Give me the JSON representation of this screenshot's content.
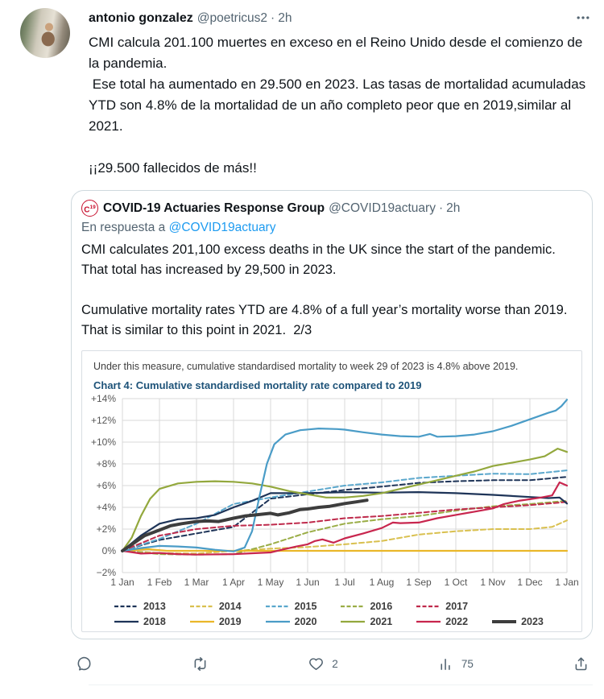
{
  "tweet": {
    "author": "antonio gonzalez",
    "handle": "@poetricus2",
    "separator": "·",
    "time": "2h",
    "text": "CMI calcula 201.100 muertes en exceso en el Reino Unido desde el comienzo de la pandemia.\n Ese total ha aumentado en 29.500 en 2023. Las tasas de mortalidad acumuladas YTD son 4.8% de la mortalidad de un año completo peor que en 2019,similar al 2021.\n\n¡¡29.500 fallecidos de más!!"
  },
  "quote": {
    "logo_main": "C",
    "logo_sup": "19",
    "author": "COVID-19 Actuaries Response Group",
    "handle": "@COVID19actuary",
    "separator": "·",
    "time": "2h",
    "reply_prefix": "En respuesta a",
    "reply_handle": "@COVID19actuary",
    "text": "CMI calculates 201,100 excess deaths in the UK since the start of the pandemic. That total has increased by 29,500 in 2023.\n\nCumulative mortality rates YTD are 4.8% of a full year’s mortality worse than 2019. That is similar to this point in 2021.  2/3"
  },
  "actions": {
    "like_count": "2",
    "views_count": "75"
  },
  "chart_data": {
    "type": "line",
    "note": "Under this measure, cumulative standardised mortality to week 29 of 2023 is 4.8% above 2019.",
    "title": "Chart 4: Cumulative standardised mortality rate compared to 2019",
    "x_unit": "months since 1 Jan",
    "xlim": [
      0,
      12
    ],
    "ylim": [
      -2,
      14
    ],
    "grid": true,
    "legend_position": "bottom",
    "grid_color": "#d9d9d9",
    "xticks": {
      "values": [
        0,
        1,
        2,
        3,
        4,
        5,
        6,
        7,
        8,
        9,
        10,
        11,
        12
      ],
      "labels": [
        "1 Jan",
        "1 Feb",
        "1 Mar",
        "1 Apr",
        "1 May",
        "1 Jun",
        "1 Jul",
        "1 Aug",
        "1 Sep",
        "1 Oct",
        "1 Nov",
        "1 Dec",
        "1 Jan"
      ]
    },
    "yticks": {
      "values": [
        14,
        12,
        10,
        8,
        6,
        4,
        2,
        0,
        -2
      ],
      "labels": [
        "+14%",
        "+12%",
        "+10%",
        "+8%",
        "+6%",
        "+4%",
        "+2%",
        "0%",
        "−2%"
      ]
    },
    "series": [
      {
        "name": "2013",
        "color": "#1e3458",
        "dashed": true,
        "width": 2,
        "row": 1,
        "z": 1,
        "x": [
          0,
          1,
          2,
          3,
          4,
          5,
          6,
          7,
          8,
          9,
          10,
          11,
          12
        ],
        "y": [
          0,
          1.0,
          1.6,
          2.2,
          4.8,
          5.2,
          5.6,
          5.9,
          6.25,
          6.4,
          6.5,
          6.5,
          6.8
        ]
      },
      {
        "name": "2014",
        "color": "#d9c04f",
        "dashed": true,
        "width": 2,
        "row": 1,
        "z": 2,
        "x": [
          0,
          1,
          2,
          3,
          4,
          5,
          6,
          7,
          8,
          9,
          10,
          11,
          11.6,
          12
        ],
        "y": [
          0,
          -0.2,
          -0.25,
          0.0,
          0.2,
          0.35,
          0.6,
          0.9,
          1.5,
          1.8,
          2.0,
          2.0,
          2.2,
          2.8
        ]
      },
      {
        "name": "2015",
        "color": "#5aa7cc",
        "dashed": true,
        "width": 2,
        "row": 1,
        "z": 3,
        "x": [
          0,
          1,
          2,
          3,
          4,
          5,
          6,
          7,
          8,
          9,
          10,
          11,
          12
        ],
        "y": [
          0,
          1.1,
          2.5,
          4.3,
          4.9,
          5.45,
          6.0,
          6.3,
          6.7,
          6.9,
          7.1,
          7.05,
          7.4
        ]
      },
      {
        "name": "2016",
        "color": "#9aad46",
        "dashed": true,
        "width": 2,
        "row": 1,
        "z": 4,
        "x": [
          0,
          1,
          2,
          3,
          4,
          5,
          6,
          7,
          8,
          9,
          10,
          11,
          12
        ],
        "y": [
          0,
          -0.3,
          -0.35,
          -0.3,
          0.6,
          1.7,
          2.5,
          2.9,
          3.2,
          3.7,
          4.1,
          4.3,
          4.6
        ]
      },
      {
        "name": "2017",
        "color": "#bf2b4c",
        "dashed": true,
        "width": 2,
        "row": 1,
        "z": 5,
        "x": [
          0,
          1,
          2,
          3,
          4,
          5,
          6,
          7,
          8,
          9,
          10,
          11,
          12
        ],
        "y": [
          0,
          1.4,
          2.0,
          2.3,
          2.4,
          2.6,
          3.0,
          3.2,
          3.5,
          3.8,
          4.0,
          4.2,
          4.5
        ]
      },
      {
        "name": "2018",
        "color": "#1e3458",
        "dashed": false,
        "width": 2.2,
        "row": 2,
        "z": 7,
        "x": [
          0,
          0.5,
          1,
          1.5,
          2,
          2.5,
          3,
          3.5,
          4,
          5,
          6,
          7,
          8,
          9,
          10,
          11,
          11.5,
          11.8,
          12
        ],
        "y": [
          0,
          1.4,
          2.5,
          2.9,
          3.0,
          3.3,
          4.0,
          4.6,
          5.3,
          5.3,
          5.4,
          5.35,
          5.4,
          5.3,
          5.15,
          4.95,
          4.85,
          4.9,
          4.35
        ]
      },
      {
        "name": "2019",
        "color": "#eab729",
        "dashed": false,
        "width": 2.2,
        "row": 2,
        "z": 6,
        "x": [
          0,
          0.7,
          1.2,
          12
        ],
        "y": [
          0,
          0.15,
          0,
          0
        ]
      },
      {
        "name": "2020",
        "color": "#4a9cc7",
        "dashed": false,
        "width": 2.2,
        "row": 2,
        "z": 10,
        "x": [
          0,
          0.5,
          1,
          1.5,
          2,
          2.5,
          3,
          3.3,
          3.5,
          3.7,
          3.9,
          4.1,
          4.4,
          4.8,
          5.3,
          5.8,
          6,
          6.5,
          7,
          7.5,
          8,
          8.3,
          8.5,
          9,
          9.5,
          10,
          10.5,
          11,
          11.5,
          11.7,
          11.85,
          12
        ],
        "y": [
          0,
          0.25,
          0.45,
          0.4,
          0.3,
          0.1,
          -0.05,
          0.3,
          1.8,
          5.0,
          8.0,
          9.8,
          10.7,
          11.1,
          11.25,
          11.2,
          11.15,
          10.9,
          10.7,
          10.55,
          10.5,
          10.75,
          10.5,
          10.55,
          10.7,
          11.0,
          11.5,
          12.1,
          12.7,
          12.9,
          13.3,
          13.9
        ]
      },
      {
        "name": "2021",
        "color": "#93a83d",
        "dashed": false,
        "width": 2.2,
        "row": 2,
        "z": 8,
        "x": [
          0,
          0.25,
          0.5,
          0.75,
          1,
          1.5,
          2,
          2.5,
          3,
          3.5,
          4,
          4.5,
          5,
          5.5,
          6,
          6.5,
          7,
          7.5,
          8,
          8.5,
          9,
          9.5,
          10,
          10.5,
          11,
          11.4,
          11.75,
          12
        ],
        "y": [
          0,
          1.2,
          3.2,
          4.8,
          5.7,
          6.2,
          6.35,
          6.4,
          6.35,
          6.2,
          5.9,
          5.5,
          5.2,
          4.9,
          4.9,
          5.05,
          5.3,
          5.7,
          6.1,
          6.5,
          6.9,
          7.3,
          7.8,
          8.1,
          8.4,
          8.7,
          9.4,
          9.1
        ]
      },
      {
        "name": "2022",
        "color": "#c8264e",
        "dashed": false,
        "width": 2.2,
        "row": 2,
        "z": 9,
        "x": [
          0,
          0.5,
          1,
          1.5,
          2,
          3,
          4,
          4.3,
          4.7,
          5,
          5.2,
          5.4,
          5.7,
          6,
          6.5,
          7,
          7.3,
          7.5,
          8,
          8.5,
          9,
          9.5,
          10,
          10.3,
          10.7,
          11,
          11.3,
          11.6,
          11.8,
          12
        ],
        "y": [
          0,
          -0.25,
          -0.2,
          -0.3,
          -0.35,
          -0.3,
          -0.15,
          0.1,
          0.4,
          0.6,
          0.9,
          1.05,
          0.75,
          1.15,
          1.6,
          2.1,
          2.6,
          2.55,
          2.6,
          3.0,
          3.3,
          3.6,
          3.9,
          4.3,
          4.6,
          4.75,
          4.9,
          5.1,
          6.3,
          6.0
        ]
      },
      {
        "name": "2023",
        "color": "#3d3d3d",
        "dashed": false,
        "width": 4,
        "row": 2,
        "z": 11,
        "x": [
          0,
          0.3,
          0.6,
          1,
          1.3,
          1.6,
          2,
          2.3,
          2.6,
          3,
          3.3,
          3.6,
          4,
          4.2,
          4.5,
          4.8,
          5,
          5.3,
          5.6,
          6,
          6.3,
          6.6
        ],
        "y": [
          0,
          0.7,
          1.4,
          1.9,
          2.3,
          2.5,
          2.7,
          2.75,
          2.7,
          3.0,
          3.2,
          3.3,
          3.45,
          3.3,
          3.5,
          3.8,
          3.85,
          4.0,
          4.1,
          4.35,
          4.5,
          4.65
        ]
      }
    ]
  }
}
